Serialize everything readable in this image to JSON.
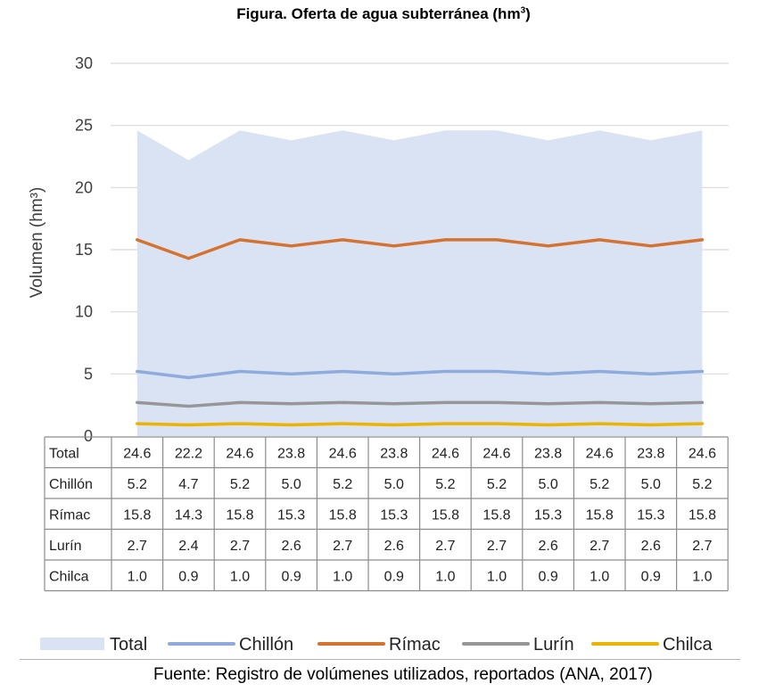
{
  "chart_data": {
    "type": "area",
    "title": "Figura. Oferta de agua subterránea (hm",
    "title_sup": "3",
    "title_end": ")",
    "ylabel": "Volumen (hm³)",
    "ylim": [
      0,
      30
    ],
    "yticks": [
      "0",
      "5",
      "10",
      "15",
      "20",
      "25",
      "30"
    ],
    "grid": true,
    "legend_position": "bottom",
    "categories": [
      "",
      "",
      "",
      "",
      "",
      "",
      "",
      "",
      "",
      "",
      "",
      ""
    ],
    "series": [
      {
        "name": "Total",
        "style": "area",
        "color": "#dae3f3",
        "values": [
          24.6,
          22.2,
          24.6,
          23.8,
          24.6,
          23.8,
          24.6,
          24.6,
          23.8,
          24.6,
          23.8,
          24.6
        ],
        "labels": [
          "24.6",
          "22.2",
          "24.6",
          "23.8",
          "24.6",
          "23.8",
          "24.6",
          "24.6",
          "23.8",
          "24.6",
          "23.8",
          "24.6"
        ]
      },
      {
        "name": "Chillón",
        "style": "line",
        "color": "#8faadc",
        "values": [
          5.2,
          4.7,
          5.2,
          5.0,
          5.2,
          5.0,
          5.2,
          5.2,
          5.0,
          5.2,
          5.0,
          5.2
        ],
        "labels": [
          "5.2",
          "4.7",
          "5.2",
          "5.0",
          "5.2",
          "5.0",
          "5.2",
          "5.2",
          "5.0",
          "5.2",
          "5.0",
          "5.2"
        ]
      },
      {
        "name": "Rímac",
        "style": "line",
        "color": "#d6722f",
        "values": [
          15.8,
          14.3,
          15.8,
          15.3,
          15.8,
          15.3,
          15.8,
          15.8,
          15.3,
          15.8,
          15.3,
          15.8
        ],
        "labels": [
          "15.8",
          "14.3",
          "15.8",
          "15.3",
          "15.8",
          "15.3",
          "15.8",
          "15.8",
          "15.3",
          "15.8",
          "15.3",
          "15.8"
        ]
      },
      {
        "name": "Lurín",
        "style": "line",
        "color": "#969696",
        "values": [
          2.7,
          2.4,
          2.7,
          2.6,
          2.7,
          2.6,
          2.7,
          2.7,
          2.6,
          2.7,
          2.6,
          2.7
        ],
        "labels": [
          "2.7",
          "2.4",
          "2.7",
          "2.6",
          "2.7",
          "2.6",
          "2.7",
          "2.7",
          "2.6",
          "2.7",
          "2.6",
          "2.7"
        ]
      },
      {
        "name": "Chilca",
        "style": "line",
        "color": "#ecb400",
        "values": [
          1.0,
          0.9,
          1.0,
          0.9,
          1.0,
          0.9,
          1.0,
          1.0,
          0.9,
          1.0,
          0.9,
          1.0
        ],
        "labels": [
          "1.0",
          "0.9",
          "1.0",
          "0.9",
          "1.0",
          "0.9",
          "1.0",
          "1.0",
          "0.9",
          "1.0",
          "0.9",
          "1.0"
        ]
      }
    ],
    "source": "Fuente: Registro de volúmenes utilizados, reportados (ANA, 2017)"
  }
}
